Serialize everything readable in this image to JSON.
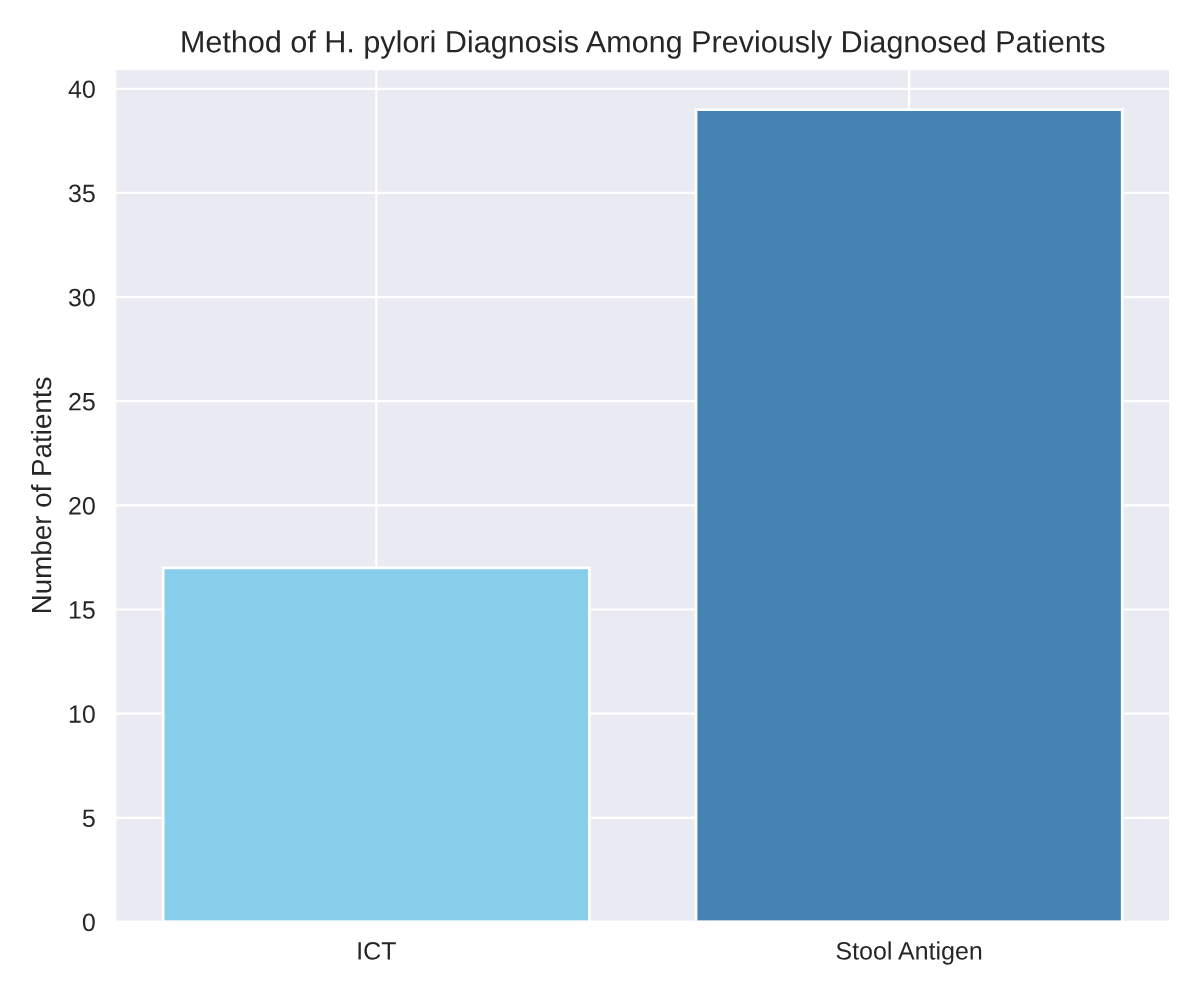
{
  "chart_data": {
    "type": "bar",
    "title": "Method of H. pylori Diagnosis Among Previously Diagnosed Patients",
    "ylabel": "Number of Patients",
    "categories": [
      "ICT",
      "Stool Antigen"
    ],
    "values": [
      17,
      39
    ],
    "colors": [
      "#87ceeb",
      "#4682b4"
    ],
    "ylim": [
      0,
      40.95
    ],
    "yticks": [
      0,
      5,
      10,
      15,
      20,
      25,
      30,
      35,
      40
    ],
    "grid": true
  }
}
